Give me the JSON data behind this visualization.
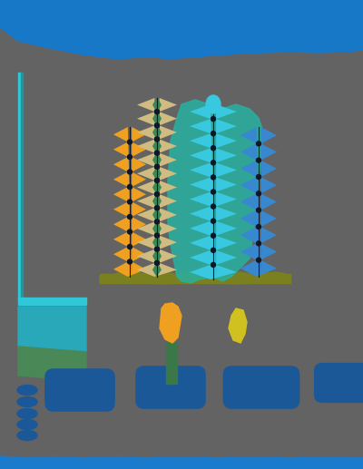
{
  "bg_color": "#636363",
  "top_blue_color": "#1878c8",
  "bottom_blue_color": "#1a7acc",
  "cyan_line_color": "#30c8d8",
  "teal_block_color": "#28a8b8",
  "green_block_color": "#4a8858",
  "olive_base_color": "#7a8020",
  "tower_orange": "#f0a020",
  "tower_beige": "#d0bc80",
  "tower_teal": "#28b0a0",
  "tower_cyan": "#38c8e0",
  "tower_blue": "#3888d0",
  "tower_green": "#38885a",
  "tower_dark_teal": "#208878",
  "tower_cyan2": "#40b8c8",
  "small_blue": "#1a5898",
  "dot_blue": "#1a5898",
  "orange_blob": "#f0a020",
  "yellow_blob": "#d0c020",
  "green_stem": "#3a7848",
  "stem_dark": "#101828"
}
